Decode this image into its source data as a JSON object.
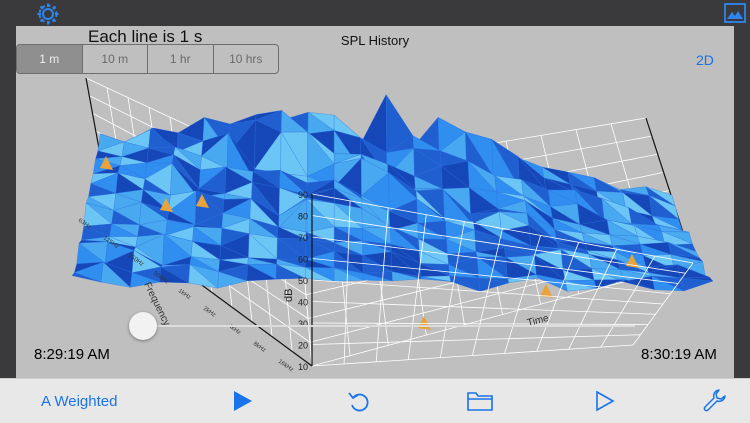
{
  "caption": "Each line is 1 s",
  "chart_title": "SPL History",
  "view_toggle": "2D",
  "time_ranges": [
    "1 m",
    "10 m",
    "1 hr",
    "10 hrs"
  ],
  "selected_range": "1 m",
  "start_time": "8:29:19 AM",
  "end_time": "8:30:19 AM",
  "weighting": "A Weighted",
  "icons": {
    "settings": "gear-icon",
    "image": "image-icon",
    "play": "play-icon",
    "undo": "undo-icon",
    "folder": "folder-icon",
    "play_outline": "play-outline-icon",
    "tools": "wrench-icon"
  },
  "colors": {
    "accent": "#1a73e8",
    "surface_dark": "#1f5fd0",
    "surface_mid": "#2f8ef0",
    "surface_light": "#6cc6f5",
    "peak": "#e8a43a"
  },
  "chart_data": {
    "type": "surface",
    "title": "SPL History",
    "zlabel": "dB",
    "ylabel": "Frequency",
    "xlabel": "Time",
    "z_ticks": [
      "90",
      "80",
      "70",
      "60",
      "50",
      "40",
      "30",
      "20",
      "10"
    ],
    "zlim": [
      10,
      90
    ],
    "frequency_ticks": [
      "16kHz",
      "8kHz",
      "4kHz",
      "2kHz",
      "1kHz",
      "500Hz",
      "250Hz",
      "125Hz",
      "63Hz"
    ]
  }
}
